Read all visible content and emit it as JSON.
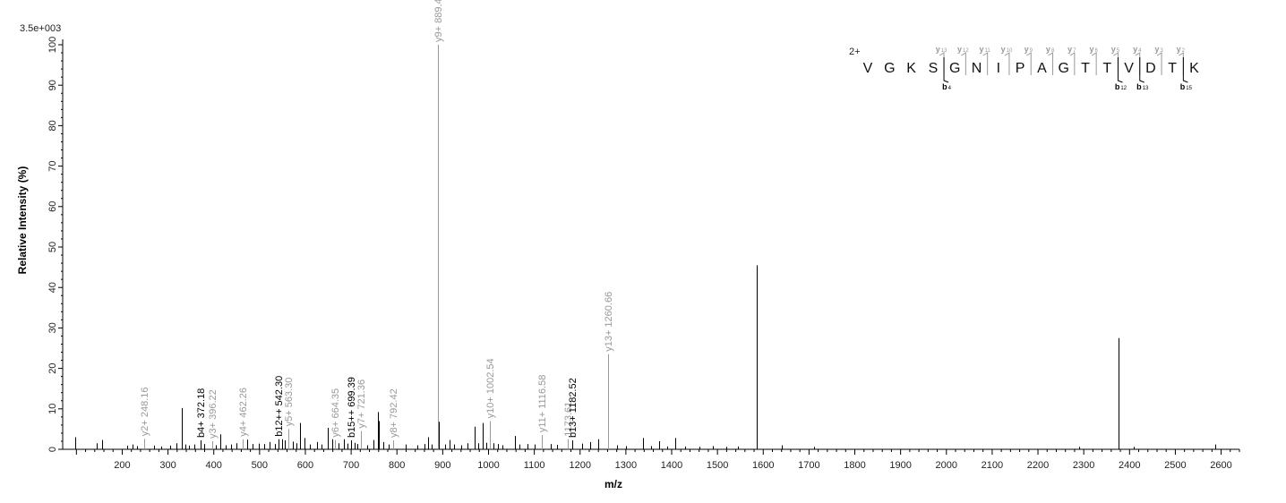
{
  "chart_data": {
    "type": "bar",
    "xlabel": "m/z",
    "ylabel": "Relative   Intensity (%)",
    "scale_label": "3.5e+003",
    "xlim": [
      70,
      2640
    ],
    "ylim": [
      0,
      100
    ],
    "x_ticks": [
      200,
      300,
      400,
      500,
      600,
      700,
      800,
      900,
      1000,
      1100,
      1200,
      1300,
      1400,
      1500,
      1600,
      1700,
      1800,
      1900,
      2000,
      2100,
      2200,
      2300,
      2400,
      2500,
      2600
    ],
    "y_ticks": [
      0,
      10,
      20,
      30,
      40,
      50,
      60,
      70,
      80,
      90,
      100
    ],
    "peaks": [
      {
        "mz": 97,
        "i": 3,
        "c": "#000"
      },
      {
        "mz": 145,
        "i": 1.5,
        "c": "#000"
      },
      {
        "mz": 157,
        "i": 2.3,
        "c": "#000"
      },
      {
        "mz": 210,
        "i": 0.9,
        "c": "#000"
      },
      {
        "mz": 222,
        "i": 1.2,
        "c": "#000"
      },
      {
        "mz": 232,
        "i": 0.8,
        "c": "#000"
      },
      {
        "mz": 248.16,
        "i": 2.6,
        "c": "#999"
      },
      {
        "mz": 270,
        "i": 0.9,
        "c": "#000"
      },
      {
        "mz": 285,
        "i": 0.7,
        "c": "#000"
      },
      {
        "mz": 305,
        "i": 0.9,
        "c": "#000"
      },
      {
        "mz": 318,
        "i": 1.5,
        "c": "#000"
      },
      {
        "mz": 330,
        "i": 10.2,
        "c": "#000"
      },
      {
        "mz": 338,
        "i": 1.2,
        "c": "#000"
      },
      {
        "mz": 345,
        "i": 0.9,
        "c": "#000"
      },
      {
        "mz": 357,
        "i": 1.2,
        "c": "#000"
      },
      {
        "mz": 372.18,
        "i": 2.2,
        "c": "#000"
      },
      {
        "mz": 380,
        "i": 1.3,
        "c": "#000"
      },
      {
        "mz": 396.22,
        "i": 2.0,
        "c": "#999"
      },
      {
        "mz": 404,
        "i": 1.0,
        "c": "#000"
      },
      {
        "mz": 415,
        "i": 3.7,
        "c": "#000"
      },
      {
        "mz": 425,
        "i": 1.0,
        "c": "#000"
      },
      {
        "mz": 438,
        "i": 1.2,
        "c": "#000"
      },
      {
        "mz": 450,
        "i": 1.5,
        "c": "#000"
      },
      {
        "mz": 462.26,
        "i": 2.5,
        "c": "#999"
      },
      {
        "mz": 472,
        "i": 2.4,
        "c": "#000"
      },
      {
        "mz": 485,
        "i": 1.3,
        "c": "#000"
      },
      {
        "mz": 498,
        "i": 1.4,
        "c": "#000"
      },
      {
        "mz": 510,
        "i": 1.3,
        "c": "#000"
      },
      {
        "mz": 522,
        "i": 1.8,
        "c": "#000"
      },
      {
        "mz": 533,
        "i": 1.3,
        "c": "#000"
      },
      {
        "mz": 542.3,
        "i": 2.5,
        "c": "#000"
      },
      {
        "mz": 550,
        "i": 2.5,
        "c": "#000"
      },
      {
        "mz": 555,
        "i": 2.2,
        "c": "#000"
      },
      {
        "mz": 563.3,
        "i": 5.0,
        "c": "#999"
      },
      {
        "mz": 572,
        "i": 1.9,
        "c": "#000"
      },
      {
        "mz": 580,
        "i": 1.5,
        "c": "#000"
      },
      {
        "mz": 588,
        "i": 6.5,
        "c": "#000"
      },
      {
        "mz": 598,
        "i": 2.8,
        "c": "#000"
      },
      {
        "mz": 610,
        "i": 1.2,
        "c": "#000"
      },
      {
        "mz": 625,
        "i": 1.8,
        "c": "#000"
      },
      {
        "mz": 635,
        "i": 1.2,
        "c": "#000"
      },
      {
        "mz": 648,
        "i": 5.3,
        "c": "#000"
      },
      {
        "mz": 658,
        "i": 2.5,
        "c": "#000"
      },
      {
        "mz": 664.35,
        "i": 2.3,
        "c": "#999"
      },
      {
        "mz": 672,
        "i": 1.5,
        "c": "#000"
      },
      {
        "mz": 684,
        "i": 2.5,
        "c": "#000"
      },
      {
        "mz": 692,
        "i": 1.4,
        "c": "#000"
      },
      {
        "mz": 699.39,
        "i": 2.2,
        "c": "#000"
      },
      {
        "mz": 707,
        "i": 1.6,
        "c": "#000"
      },
      {
        "mz": 714,
        "i": 1.3,
        "c": "#000"
      },
      {
        "mz": 721.36,
        "i": 4.5,
        "c": "#999"
      },
      {
        "mz": 735,
        "i": 1.0,
        "c": "#000"
      },
      {
        "mz": 748,
        "i": 2.3,
        "c": "#000"
      },
      {
        "mz": 758,
        "i": 9.2,
        "c": "#000"
      },
      {
        "mz": 761,
        "i": 7.0,
        "c": "#000"
      },
      {
        "mz": 770,
        "i": 1.8,
        "c": "#000"
      },
      {
        "mz": 782,
        "i": 1.2,
        "c": "#000"
      },
      {
        "mz": 792.42,
        "i": 2.2,
        "c": "#999"
      },
      {
        "mz": 820,
        "i": 1.2,
        "c": "#000"
      },
      {
        "mz": 845,
        "i": 1.0,
        "c": "#000"
      },
      {
        "mz": 860,
        "i": 1.3,
        "c": "#000"
      },
      {
        "mz": 868,
        "i": 3.0,
        "c": "#000"
      },
      {
        "mz": 876,
        "i": 1.2,
        "c": "#000"
      },
      {
        "mz": 889.46,
        "i": 100,
        "c": "#999"
      },
      {
        "mz": 891,
        "i": 6.8,
        "c": "#000"
      },
      {
        "mz": 905,
        "i": 1.2,
        "c": "#000"
      },
      {
        "mz": 915,
        "i": 2.3,
        "c": "#000"
      },
      {
        "mz": 925,
        "i": 1.2,
        "c": "#000"
      },
      {
        "mz": 940,
        "i": 1.0,
        "c": "#000"
      },
      {
        "mz": 955,
        "i": 1.5,
        "c": "#000"
      },
      {
        "mz": 970,
        "i": 5.6,
        "c": "#000"
      },
      {
        "mz": 978,
        "i": 1.5,
        "c": "#000"
      },
      {
        "mz": 988,
        "i": 6.5,
        "c": "#000"
      },
      {
        "mz": 995,
        "i": 1.6,
        "c": "#000"
      },
      {
        "mz": 1002.54,
        "i": 7.0,
        "c": "#999"
      },
      {
        "mz": 1010,
        "i": 1.5,
        "c": "#000"
      },
      {
        "mz": 1020,
        "i": 1.3,
        "c": "#000"
      },
      {
        "mz": 1030,
        "i": 1.0,
        "c": "#000"
      },
      {
        "mz": 1058,
        "i": 3.3,
        "c": "#000"
      },
      {
        "mz": 1068,
        "i": 1.2,
        "c": "#000"
      },
      {
        "mz": 1085,
        "i": 1.3,
        "c": "#000"
      },
      {
        "mz": 1100,
        "i": 1.2,
        "c": "#000"
      },
      {
        "mz": 1116.58,
        "i": 3.5,
        "c": "#999"
      },
      {
        "mz": 1135,
        "i": 1.3,
        "c": "#000"
      },
      {
        "mz": 1150,
        "i": 1.1,
        "c": "#000"
      },
      {
        "mz": 1173.61,
        "i": 2.5,
        "c": "#999"
      },
      {
        "mz": 1182.52,
        "i": 2.2,
        "c": "#000"
      },
      {
        "mz": 1205,
        "i": 1.4,
        "c": "#000"
      },
      {
        "mz": 1222,
        "i": 1.8,
        "c": "#000"
      },
      {
        "mz": 1240,
        "i": 2.5,
        "c": "#000"
      },
      {
        "mz": 1260.66,
        "i": 23.5,
        "c": "#999"
      },
      {
        "mz": 1280,
        "i": 1.0,
        "c": "#000"
      },
      {
        "mz": 1300,
        "i": 0.8,
        "c": "#000"
      },
      {
        "mz": 1337,
        "i": 2.8,
        "c": "#000"
      },
      {
        "mz": 1355,
        "i": 0.8,
        "c": "#000"
      },
      {
        "mz": 1372,
        "i": 2.0,
        "c": "#000"
      },
      {
        "mz": 1390,
        "i": 0.7,
        "c": "#000"
      },
      {
        "mz": 1408,
        "i": 2.8,
        "c": "#000"
      },
      {
        "mz": 1430,
        "i": 0.7,
        "c": "#000"
      },
      {
        "mz": 1460,
        "i": 0.6,
        "c": "#000"
      },
      {
        "mz": 1490,
        "i": 0.8,
        "c": "#000"
      },
      {
        "mz": 1520,
        "i": 0.6,
        "c": "#000"
      },
      {
        "mz": 1545,
        "i": 0.7,
        "c": "#000"
      },
      {
        "mz": 1585,
        "i": 45.5,
        "c": "#000"
      },
      {
        "mz": 1640,
        "i": 1.0,
        "c": "#000"
      },
      {
        "mz": 1710,
        "i": 0.6,
        "c": "#000"
      },
      {
        "mz": 2290,
        "i": 0.6,
        "c": "#000"
      },
      {
        "mz": 2375,
        "i": 27.5,
        "c": "#000"
      },
      {
        "mz": 2410,
        "i": 0.6,
        "c": "#000"
      },
      {
        "mz": 2588,
        "i": 1.2,
        "c": "#000"
      }
    ],
    "annotations": [
      {
        "text": "y2+ 248.16",
        "mz": 248.16,
        "i": 2.6,
        "c": "#999"
      },
      {
        "text": "b4+ 372.18",
        "mz": 372.18,
        "i": 2.2,
        "c": "#000"
      },
      {
        "text": "y3+ 396.22",
        "mz": 396.22,
        "i": 2.0,
        "c": "#999"
      },
      {
        "text": "y4+ 462.26",
        "mz": 462.26,
        "i": 2.5,
        "c": "#999"
      },
      {
        "text": "b12++ 542.30",
        "mz": 542.3,
        "i": 2.5,
        "c": "#000"
      },
      {
        "text": "y5+ 563.30",
        "mz": 563.3,
        "i": 5.0,
        "c": "#999"
      },
      {
        "text": "y6+ 664.35",
        "mz": 664.35,
        "i": 2.3,
        "c": "#999"
      },
      {
        "text": "b15++ 699.39",
        "mz": 699.39,
        "i": 2.2,
        "c": "#000"
      },
      {
        "text": "y7+ 721.36",
        "mz": 721.36,
        "i": 4.5,
        "c": "#999"
      },
      {
        "text": "y8+ 792.42",
        "mz": 792.42,
        "i": 2.2,
        "c": "#999"
      },
      {
        "text": "y9+ 889.46",
        "mz": 889.46,
        "i": 100,
        "c": "#999"
      },
      {
        "text": "y10+ 1002.54",
        "mz": 1002.54,
        "i": 7.0,
        "c": "#999"
      },
      {
        "text": "y11+ 1116.58",
        "mz": 1116.58,
        "i": 3.5,
        "c": "#999"
      },
      {
        "text": "1173.61",
        "mz": 1173.61,
        "i": 2.5,
        "c": "#999"
      },
      {
        "text": "b13+ 1182.52",
        "mz": 1182.52,
        "i": 2.2,
        "c": "#000"
      },
      {
        "text": "y13+ 1260.66",
        "mz": 1260.66,
        "i": 23.5,
        "c": "#999"
      }
    ],
    "sequence": {
      "charge": "2+",
      "residues": [
        "V",
        "G",
        "K",
        "S",
        "G",
        "N",
        "I",
        "P",
        "A",
        "G",
        "T",
        "T",
        "V",
        "D",
        "T",
        "K"
      ],
      "y_labels": [
        {
          "after": 3,
          "num": "13"
        },
        {
          "after": 4,
          "num": "12"
        },
        {
          "after": 5,
          "num": "11"
        },
        {
          "after": 6,
          "num": "10"
        },
        {
          "after": 7,
          "num": "9"
        },
        {
          "after": 8,
          "num": "8"
        },
        {
          "after": 9,
          "num": "7"
        },
        {
          "after": 10,
          "num": "6"
        },
        {
          "after": 11,
          "num": "5"
        },
        {
          "after": 12,
          "num": "4"
        },
        {
          "after": 13,
          "num": "3"
        },
        {
          "after": 14,
          "num": "2"
        }
      ],
      "b_labels": [
        {
          "after": 3,
          "num": "4"
        },
        {
          "after": 11,
          "num": "12"
        },
        {
          "after": 12,
          "num": "13"
        },
        {
          "after": 14,
          "num": "15"
        }
      ],
      "y_color": "#999999",
      "b_color": "#000000"
    }
  }
}
